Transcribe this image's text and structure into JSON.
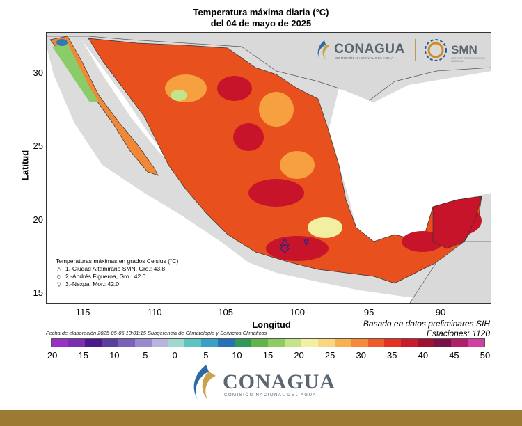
{
  "title": {
    "line1": "Temperatura máxima diaria (°C)",
    "line2": "del 04 de mayo de 2025"
  },
  "axes": {
    "ylabel": "Latitud",
    "xlabel": "Longitud",
    "yticks": [
      "30",
      "25",
      "20",
      "15"
    ],
    "xticks": [
      "-115",
      "-110",
      "-105",
      "-100",
      "-95",
      "-90"
    ]
  },
  "legend": {
    "title": "Temperaturas máximas en grados Celsius (°C)",
    "items": [
      {
        "symbol": "△",
        "text": "1.-Ciudad Altamirano SMN, Gro.: 43.8"
      },
      {
        "symbol": "◇",
        "text": "2.-Andrés Figueroa, Gro.: 42.0"
      },
      {
        "symbol": "▽",
        "text": "3.-Nexpa, Mor.: 42.0"
      }
    ]
  },
  "notes": {
    "source": "Basado en datos preliminares SIH",
    "stations": "Estaciones:  1120",
    "footnote": "Fecha de elaboración 2025-05-05 13:01:15 Subgerencia de Climatología y Servicios Climáticos"
  },
  "colorbar": {
    "ticks": [
      "-20",
      "-15",
      "-10",
      "-5",
      "0",
      "5",
      "10",
      "15",
      "20",
      "25",
      "30",
      "35",
      "40",
      "45",
      "50"
    ],
    "colors": [
      "#9b30c8",
      "#7a2fb0",
      "#4a1a8c",
      "#5b3fa0",
      "#7a62b8",
      "#9a8ccc",
      "#b8b4e0",
      "#9fd8d0",
      "#5fc4c0",
      "#3aa0c8",
      "#2870b8",
      "#2f9a5a",
      "#62b44a",
      "#8fcc60",
      "#c4e48a",
      "#f2f0a0",
      "#fbd680",
      "#f8b050",
      "#f48a3a",
      "#ef5a2a",
      "#e43020",
      "#c81a28",
      "#a01030",
      "#7a1048",
      "#b0206a",
      "#d040a0"
    ]
  },
  "logos": {
    "top_conagua": "CONAGUA",
    "top_conagua_sub": "COMISIÓN NACIONAL DEL AGUA",
    "top_smn": "SMN",
    "top_smn_sub": "SERVICIO METEOROLÓGICO NACIONAL",
    "bottom_conagua": "CONAGUA",
    "bottom_conagua_sub": "COMISIÓN NACIONAL DEL AGUA"
  },
  "colors": {
    "land_hot": "#e8501e",
    "land_veryhot": "#c8142a",
    "land_warm": "#f6a040",
    "land_mild": "#8ccc68",
    "background": "#dcdcdc",
    "gold": "#9b7a34"
  }
}
